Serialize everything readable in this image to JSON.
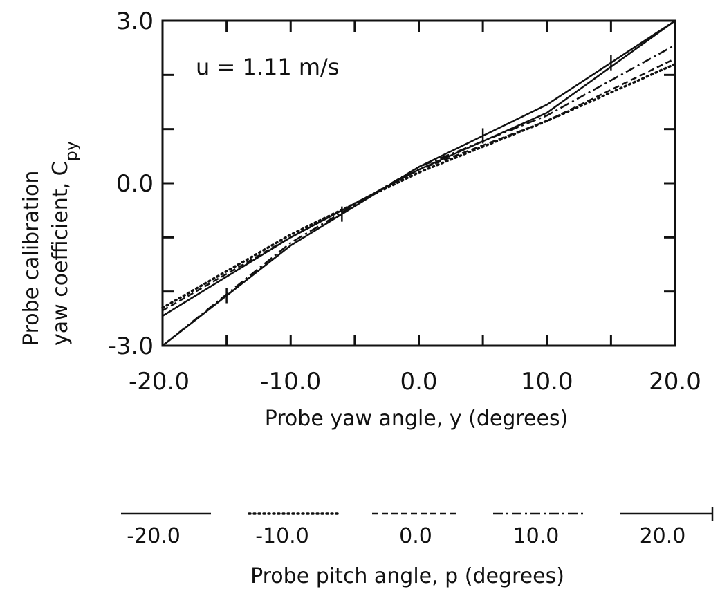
{
  "chart_data": {
    "type": "line",
    "annotation": "u = 1.11 m/s",
    "xlabel": "Probe yaw angle, y (degrees)",
    "ylabel_line1": "Probe calibration",
    "ylabel_line2": "yaw coefficient, C",
    "ylabel_sub": "py",
    "legend_title": "Probe pitch angle, p (degrees)",
    "xlim": [
      -20,
      20
    ],
    "ylim": [
      -3,
      3
    ],
    "x_tick_labels": [
      "-20.0",
      "-10.0",
      "0.0",
      "10.0",
      "20.0"
    ],
    "y_tick_labels": [
      "-3.0",
      "0.0",
      "3.0"
    ],
    "x_ticks": [
      -20,
      -15,
      -10,
      -5,
      0,
      5,
      10,
      15,
      20
    ],
    "y_ticks": [
      -3,
      -2,
      -1,
      0,
      1,
      2,
      3
    ],
    "grid": false,
    "legend_placement": "bottom",
    "series": [
      {
        "name": "-20.0",
        "style": "solid",
        "marker": "none",
        "x": [
          -20,
          -10,
          0,
          10,
          20
        ],
        "y": [
          -2.45,
          -1.0,
          0.25,
          1.3,
          3.0
        ]
      },
      {
        "name": "-10.0",
        "style": "dotted",
        "marker": "none",
        "x": [
          -20,
          -10,
          0,
          10,
          20
        ],
        "y": [
          -2.3,
          -0.95,
          0.2,
          1.15,
          2.2
        ]
      },
      {
        "name": "0.0",
        "style": "dashed",
        "marker": "none",
        "x": [
          -20,
          -10,
          0,
          10,
          20
        ],
        "y": [
          -2.35,
          -1.0,
          0.25,
          1.15,
          2.3
        ]
      },
      {
        "name": "10.0",
        "style": "dashdot",
        "marker": "none",
        "x": [
          -20,
          -10,
          0,
          10,
          20
        ],
        "y": [
          -3.0,
          -1.1,
          0.3,
          1.25,
          2.55
        ]
      },
      {
        "name": "20.0",
        "style": "solid",
        "marker": "tick",
        "x": [
          -20,
          -10,
          0,
          10,
          20
        ],
        "y": [
          -3.0,
          -1.15,
          0.3,
          1.45,
          3.0
        ],
        "marker_x": [
          -15,
          -6,
          5,
          15
        ]
      }
    ]
  }
}
